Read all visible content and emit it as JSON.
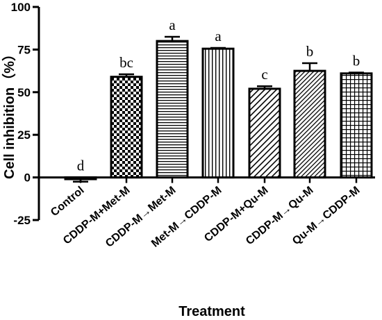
{
  "chart_data": {
    "type": "bar",
    "xlabel": "Treatment",
    "ylabel": "Cell inhibition（%）",
    "ylim": [
      -25,
      100
    ],
    "yticks": [
      "-25",
      "0",
      "25",
      "50",
      "75",
      "100"
    ],
    "grid": false,
    "categories": [
      "Control",
      "CDDP-M+Met-M",
      "CDDP-M→Met-M",
      "Met-M→CDDP-M",
      "CDDP-M+Qu-M",
      "CDDP-M→Qu-M",
      "Qu-M→CDDP-M"
    ],
    "values": [
      -1,
      59,
      80,
      75.5,
      52,
      62.5,
      61
    ],
    "errors": [
      1.5,
      1.5,
      2.5,
      0.5,
      1.5,
      4.5,
      0.5
    ],
    "significance_letters": [
      "d",
      "bc",
      "a",
      "a",
      "c",
      "b",
      "b"
    ],
    "patterns": [
      "solid",
      "checker",
      "hlines",
      "vlines",
      "diag",
      "diag-dense",
      "grid"
    ]
  }
}
